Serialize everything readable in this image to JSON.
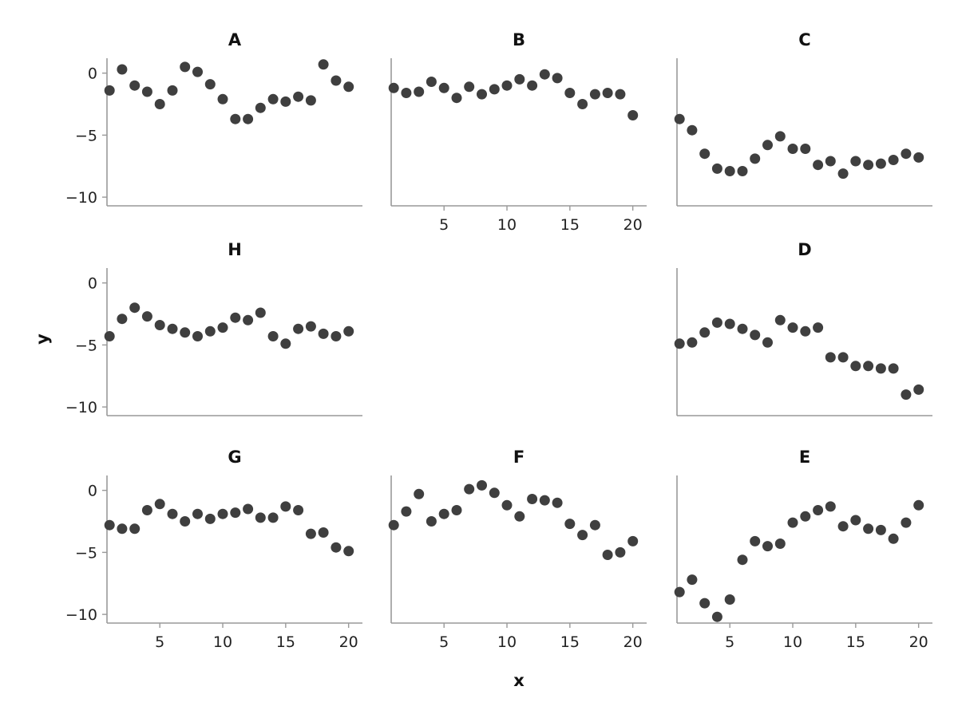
{
  "chart_data": {
    "type": "scatter",
    "xlabel": "x",
    "ylabel": "y",
    "xlim": [
      0,
      21
    ],
    "ylim": [
      -10.7,
      1.2
    ],
    "xticks": [
      5,
      10,
      15,
      20
    ],
    "yticks": [
      0,
      -5,
      -10
    ],
    "point_color": "#3f3f3f",
    "axis_color": "#999999",
    "x": [
      1,
      2,
      3,
      4,
      5,
      6,
      7,
      8,
      9,
      10,
      11,
      12,
      13,
      14,
      15,
      16,
      17,
      18,
      19,
      20
    ],
    "panels": [
      {
        "title": "A",
        "row": 0,
        "col": 0,
        "y": [
          -1.4,
          0.3,
          -1.0,
          -1.5,
          -2.5,
          -1.4,
          0.5,
          0.1,
          -0.9,
          -2.1,
          -3.7,
          -3.7,
          -2.8,
          -2.1,
          -2.3,
          -1.9,
          -2.2,
          0.7,
          -0.6,
          -1.1
        ]
      },
      {
        "title": "B",
        "row": 0,
        "col": 1,
        "y": [
          -1.2,
          -1.6,
          -1.5,
          -0.7,
          -1.2,
          -2.0,
          -1.1,
          -1.7,
          -1.3,
          -1.0,
          -0.5,
          -1.0,
          -0.1,
          -0.4,
          -1.6,
          -2.5,
          -1.7,
          -1.6,
          -1.7,
          -3.4
        ]
      },
      {
        "title": "C",
        "row": 0,
        "col": 2,
        "y": [
          -3.7,
          -4.6,
          -6.5,
          -7.7,
          -7.9,
          -7.9,
          -6.9,
          -5.8,
          -5.1,
          -6.1,
          -6.1,
          -7.4,
          -7.1,
          -8.1,
          -7.1,
          -7.4,
          -7.3,
          -7.0,
          -6.5,
          -6.8
        ]
      },
      {
        "title": "H",
        "row": 1,
        "col": 0,
        "y": [
          -4.3,
          -2.9,
          -2.0,
          -2.7,
          -3.4,
          -3.7,
          -4.0,
          -4.3,
          -3.9,
          -3.6,
          -2.8,
          -3.0,
          -2.4,
          -4.3,
          -4.9,
          -3.7,
          -3.5,
          -4.1,
          -4.3,
          -3.9
        ]
      },
      {
        "title": "D",
        "row": 1,
        "col": 2,
        "y": [
          -4.9,
          -4.8,
          -4.0,
          -3.2,
          -3.3,
          -3.7,
          -4.2,
          -4.8,
          -3.0,
          -3.6,
          -3.9,
          -3.6,
          -6.0,
          -6.0,
          -6.7,
          -6.7,
          -6.9,
          -6.9,
          -9.0,
          -8.6
        ]
      },
      {
        "title": "G",
        "row": 2,
        "col": 0,
        "y": [
          -2.8,
          -3.1,
          -3.1,
          -1.6,
          -1.1,
          -1.9,
          -2.5,
          -1.9,
          -2.3,
          -1.9,
          -1.8,
          -1.5,
          -2.2,
          -2.2,
          -1.3,
          -1.6,
          -3.5,
          -3.4,
          -4.6,
          -4.9
        ]
      },
      {
        "title": "F",
        "row": 2,
        "col": 1,
        "y": [
          -2.8,
          -1.7,
          -0.3,
          -2.5,
          -1.9,
          -1.6,
          0.1,
          0.4,
          -0.2,
          -1.2,
          -2.1,
          -0.7,
          -0.8,
          -1.0,
          -2.7,
          -3.6,
          -2.8,
          -5.2,
          -5.0,
          -4.1
        ]
      },
      {
        "title": "E",
        "row": 2,
        "col": 2,
        "y": [
          -8.2,
          -7.2,
          -9.1,
          -10.2,
          -8.8,
          -5.6,
          -4.1,
          -4.5,
          -4.3,
          -2.6,
          -2.1,
          -1.6,
          -1.3,
          -2.9,
          -2.4,
          -3.1,
          -3.2,
          -3.9,
          -2.6,
          -1.2
        ]
      }
    ],
    "x_tick_labels_on": [
      [
        0,
        1
      ],
      [
        2,
        0
      ],
      [
        2,
        1
      ],
      [
        2,
        2
      ]
    ],
    "y_tick_labels_on": [
      [
        0,
        0
      ],
      [
        1,
        0
      ],
      [
        2,
        0
      ]
    ]
  }
}
